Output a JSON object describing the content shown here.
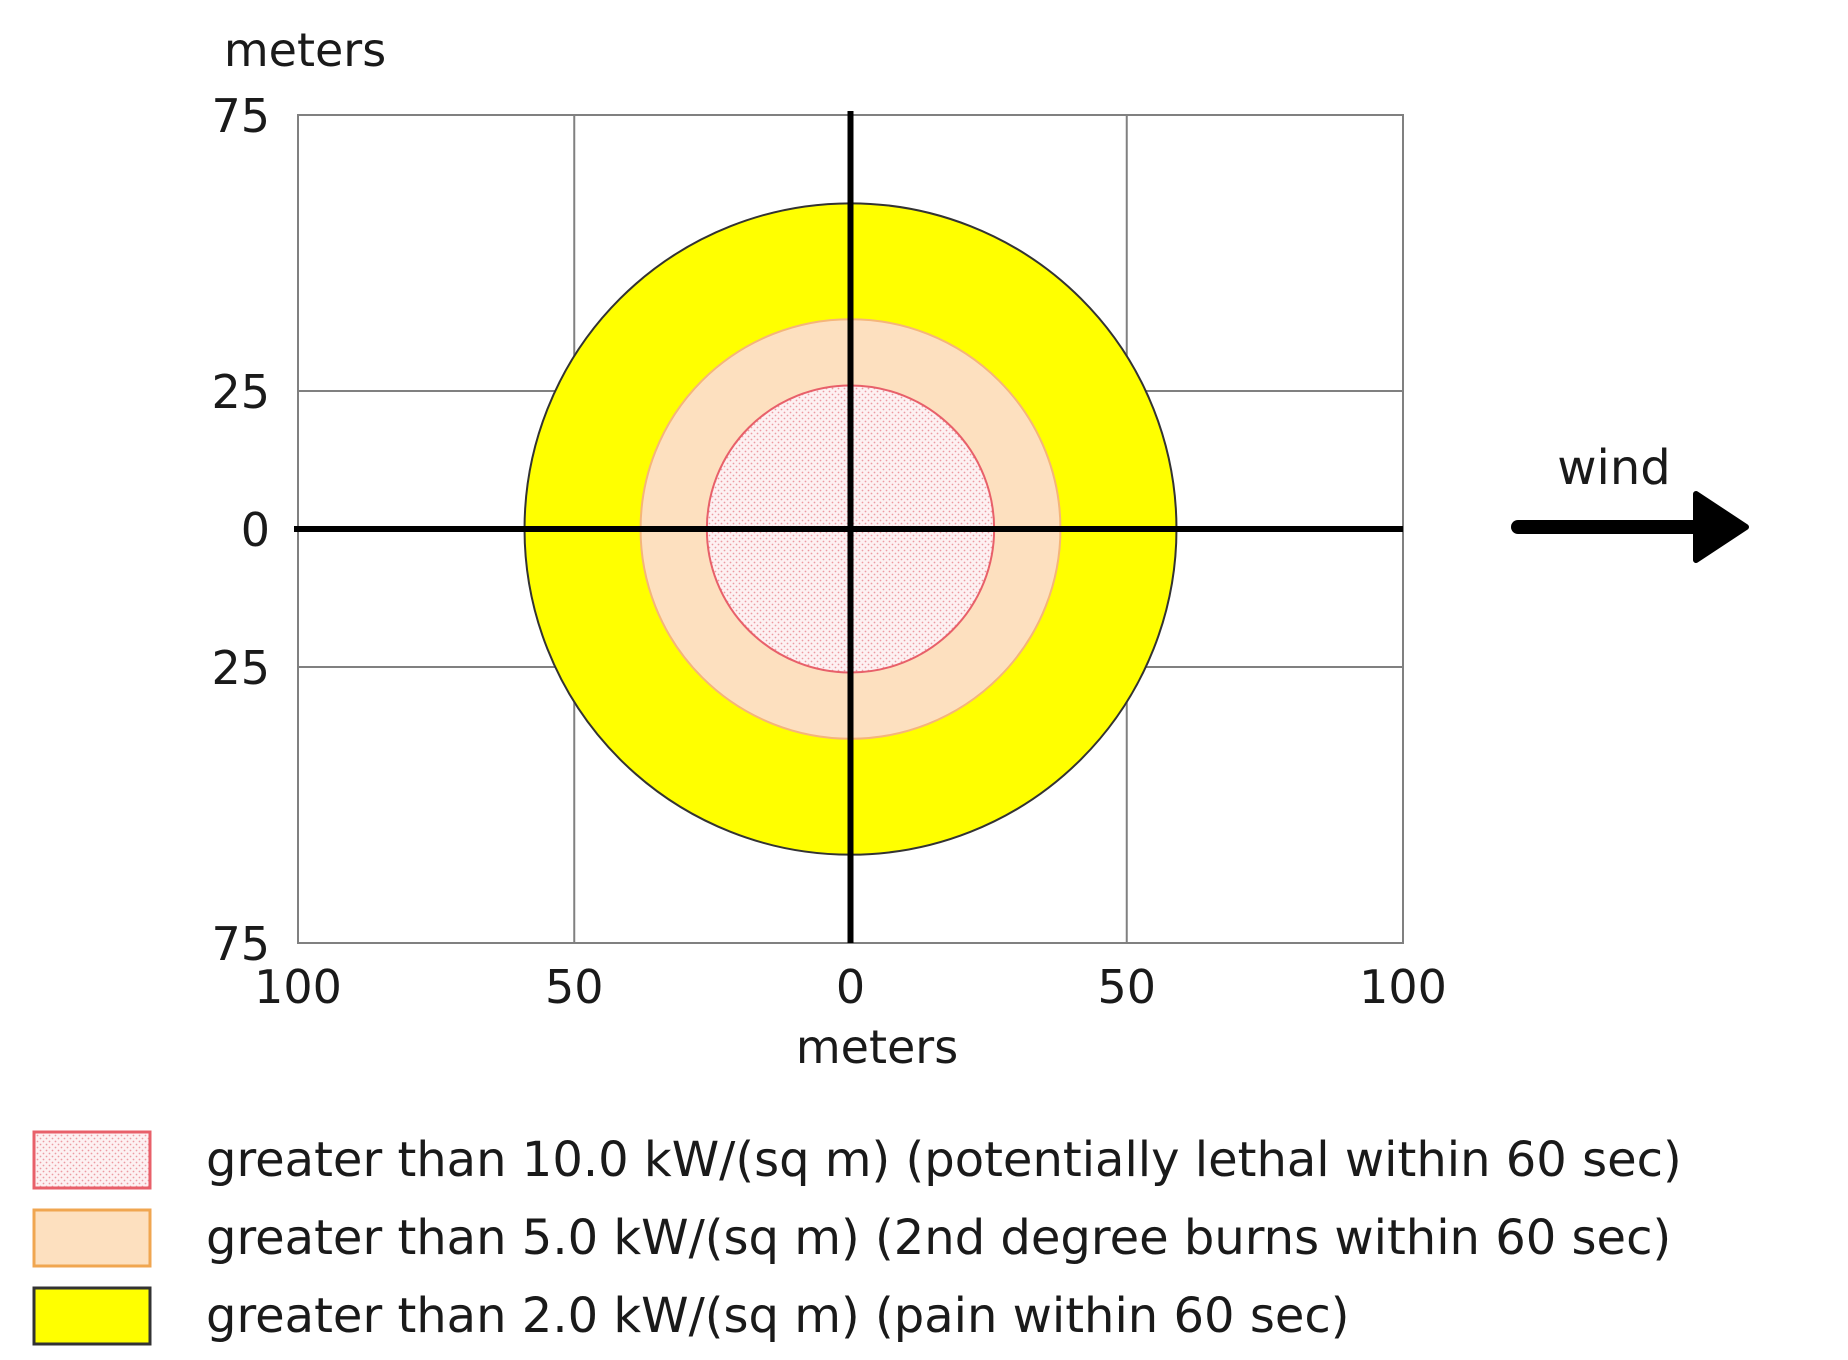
{
  "chart_data": {
    "type": "area",
    "title": "",
    "xlabel": "meters",
    "ylabel": "meters",
    "xlim": [
      -100,
      100
    ],
    "ylim": [
      -75,
      75
    ],
    "grid": true,
    "x_ticks": [
      {
        "value": -100,
        "label": "100"
      },
      {
        "value": -50,
        "label": "50"
      },
      {
        "value": 0,
        "label": "0"
      },
      {
        "value": 50,
        "label": "50"
      },
      {
        "value": 100,
        "label": "100"
      }
    ],
    "y_ticks": [
      {
        "value": 75,
        "label": "75"
      },
      {
        "value": 25,
        "label": "25"
      },
      {
        "value": 0,
        "label": "0"
      },
      {
        "value": -25,
        "label": "25"
      },
      {
        "value": -75,
        "label": "75"
      }
    ],
    "zones": [
      {
        "name": "greater than 2.0 kW/(sq m) (pain within 60 sec)",
        "cx": 0,
        "cy": 0,
        "rx": 59,
        "ry": 59,
        "fill": "#ffff00",
        "stroke": "#333333",
        "pattern": false
      },
      {
        "name": "greater than 5.0 kW/(sq m) (2nd degree burns within 60 sec)",
        "cx": 0,
        "cy": 0,
        "rx": 38,
        "ry": 38,
        "fill": "#fde0bf",
        "stroke": "#f5b57a",
        "pattern": false
      },
      {
        "name": "greater than 10.0 kW/(sq m) (potentially lethal within 60 sec)",
        "cx": 0,
        "cy": 0,
        "rx": 26,
        "ry": 26,
        "fill": "#fdeef0",
        "stroke": "#e8606a",
        "pattern": true
      }
    ],
    "legend": [
      {
        "label": "greater than 10.0 kW/(sq m) (potentially lethal within 60 sec)",
        "fill": "#fde8ea",
        "stroke": "#e8606a",
        "pattern": true
      },
      {
        "label": "greater than 5.0 kW/(sq m) (2nd degree burns within 60 sec)",
        "fill": "#fde0bf",
        "stroke": "#f0a650",
        "pattern": false
      },
      {
        "label": "greater than 2.0 kW/(sq m) (pain within 60 sec)",
        "fill": "#ffff00",
        "stroke": "#333333",
        "pattern": false
      }
    ],
    "legend_position": "bottom",
    "annotations": [
      {
        "text": "wind",
        "icon": "arrow-right-icon"
      }
    ]
  }
}
